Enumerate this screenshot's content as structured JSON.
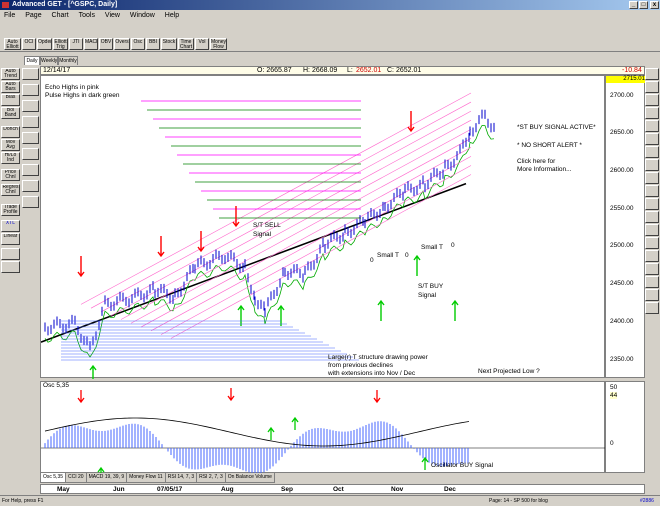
{
  "window": {
    "title": "Advanced GET - [^GSPC, Daily]",
    "min": "_",
    "max": "□",
    "close": "x"
  },
  "menu": [
    "File",
    "Page",
    "Chart",
    "Tools",
    "View",
    "Window",
    "Help"
  ],
  "toolbar": [
    "Auto Elliott",
    "OCI",
    "Opder",
    "Elliott Trig",
    "JTI",
    "MACD",
    "OBV",
    "Overs",
    "Osc",
    "BBI",
    "Stock",
    "Time Chart",
    "Vol",
    "Money Flow"
  ],
  "period_tabs": [
    "Daily",
    "Weekly",
    "Monthly"
  ],
  "left_tools": [
    "Auto Trend",
    "Auto Bars",
    "Bias",
    "Bol Band",
    "Donch",
    "Mov Avg",
    "Hi/Lo Ind",
    "Price Chnl",
    "Regres Chnl",
    "Trade Profile",
    "XTL",
    "Linear"
  ],
  "info": {
    "date": "12/14/17",
    "o": "O: 2665.87",
    "h": "H: 2668.09",
    "l_label": "L:",
    "l_val": "2652.01",
    "c": "C: 2652.01",
    "change": "-10.84",
    "last": "2715.01"
  },
  "annotations": {
    "echo": "Echo Highs in pink",
    "pulse": "Pulse Highs in dark green",
    "st_sell": "S/T SELL",
    "signal1": "Signal",
    "st_buy_active": "*ST BUY SIGNAL ACTIVE*",
    "no_short": "* NO SHORT ALERT *",
    "click1": "Click here for",
    "click2": "More Information...",
    "small_t1": "Small  T",
    "small_t2": "Small T",
    "st_buy": "S/T BUY",
    "signal2": "Signal",
    "large1": "Large(r) T structure drawing power",
    "large2": "from previous declines",
    "large3": "with extensions into Nov / Dec",
    "next_low": "Next Projected Low ?",
    "zero1": "0",
    "zero2": "0",
    "zero3": "0",
    "osc_buy": "Oscillator BUY Signal"
  },
  "y_axis": [
    "2700.00",
    "2650.00",
    "2600.00",
    "2550.00",
    "2500.00",
    "2450.00",
    "2400.00",
    "2350.00"
  ],
  "osc": {
    "label": "Osc 5,35",
    "val1": "50",
    "val2": "44",
    "zero": "0"
  },
  "bottom_tabs": [
    "Osc 5,35",
    "CCI 20",
    "MACD 19, 39, 9",
    "Money Flow 11",
    "RSI 14, 7, 3",
    "RSI 2, 7, 3",
    "On Balance Volume"
  ],
  "dates": [
    "May",
    "Jun",
    "07/05/17",
    "Aug",
    "Sep",
    "Oct",
    "Nov",
    "Dec"
  ],
  "status": {
    "left": "For Help, press F1",
    "mid": "Page: 14 - SP 500 for blog",
    "right": "#2886"
  },
  "colors": {
    "echo": "#ff00ff",
    "pulse": "#008000",
    "down_arrow": "#ff0000",
    "up_arrow": "#00cc00",
    "price": "#0000cc",
    "trend": "#000000"
  }
}
